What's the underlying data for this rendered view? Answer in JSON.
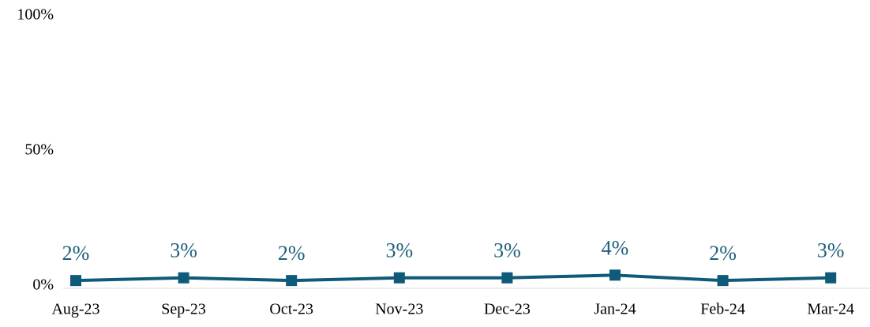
{
  "chart_data": {
    "type": "line",
    "categories": [
      "Aug-23",
      "Sep-23",
      "Oct-23",
      "Nov-23",
      "Dec-23",
      "Jan-24",
      "Feb-24",
      "Mar-24"
    ],
    "series": [
      {
        "color": "#0f5a78",
        "values": [
          2,
          3,
          2,
          3,
          3,
          4,
          2,
          3
        ],
        "value_labels": [
          "2%",
          "3%",
          "2%",
          "3%",
          "3%",
          "4%",
          "2%",
          "3%"
        ]
      }
    ],
    "ylim": [
      0,
      100
    ],
    "yticks": [
      {
        "value": 0,
        "label": "0%"
      },
      {
        "value": 50,
        "label": "50%"
      },
      {
        "value": 100,
        "label": "100%"
      }
    ],
    "grid": false
  }
}
